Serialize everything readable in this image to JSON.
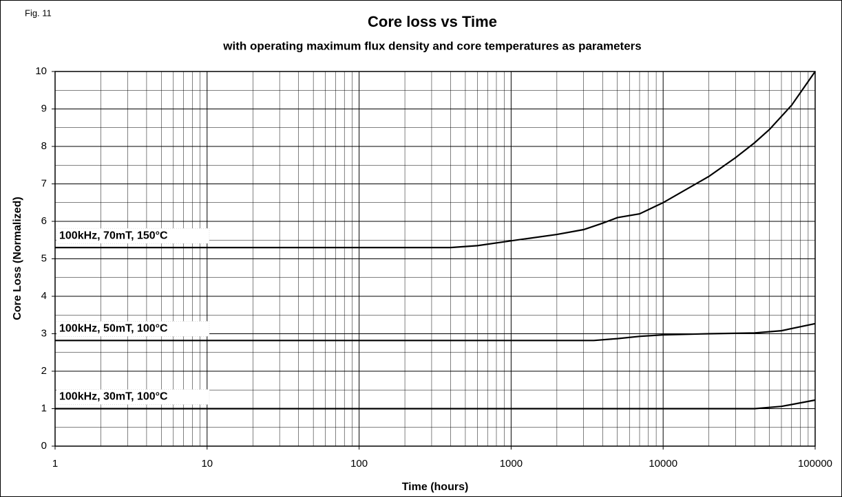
{
  "chart_data": {
    "type": "line",
    "figure_label": "Fig. 11",
    "title": "Core loss vs Time",
    "subtitle": "with operating maximum flux density and core temperatures as parameters",
    "x_label": "Time (hours)",
    "y_label": "Core Loss (Normalized)",
    "xscale": "log",
    "grid": true,
    "xlim": [
      1,
      100000
    ],
    "xticks": [
      1,
      10,
      100,
      1000,
      10000,
      100000
    ],
    "ylim": [
      0,
      10
    ],
    "yticks": [
      0,
      1,
      2,
      3,
      4,
      5,
      6,
      7,
      8,
      9,
      10
    ],
    "series": [
      {
        "name": "100kHz, 70mT, 150°C",
        "color": "#000000",
        "x": [
          1,
          100,
          400,
          600,
          1000,
          2000,
          3000,
          4000,
          5000,
          7000,
          10000,
          20000,
          30000,
          40000,
          50000,
          70000,
          100000
        ],
        "values": [
          5.3,
          5.3,
          5.3,
          5.35,
          5.48,
          5.65,
          5.78,
          5.95,
          6.1,
          6.2,
          6.5,
          7.2,
          7.7,
          8.1,
          8.45,
          9.1,
          10
        ]
      },
      {
        "name": "100kHz, 50mT, 100°C",
        "color": "#000000",
        "x": [
          1,
          3500,
          5000,
          7000,
          10000,
          20000,
          40000,
          60000,
          100000
        ],
        "values": [
          2.82,
          2.82,
          2.87,
          2.93,
          2.97,
          3.0,
          3.02,
          3.08,
          3.27
        ]
      },
      {
        "name": "100kHz, 30mT, 100°C",
        "color": "#000000",
        "x": [
          1,
          40000,
          60000,
          100000
        ],
        "values": [
          1.0,
          1.0,
          1.06,
          1.23
        ]
      }
    ]
  }
}
